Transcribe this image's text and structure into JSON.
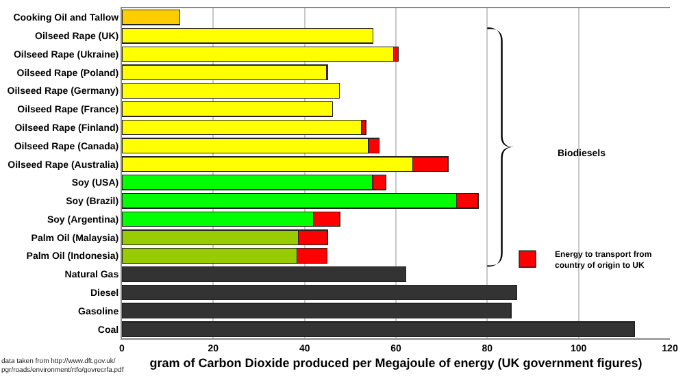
{
  "chart_data": {
    "type": "bar",
    "orientation": "horizontal",
    "stacked": true,
    "categories": [
      "Cooking Oil and Tallow",
      "Oilseed Rape (UK)",
      "Oilseed Rape (Ukraine)",
      "Oilseed Rape (Poland)",
      "Oilseed Rape (Germany)",
      "Oilseed Rape (France)",
      "Oilseed Rape (Finland)",
      "Oilseed Rape (Canada)",
      "Oilseed Rape (Australia)",
      "Soy (USA)",
      "Soy (Brazil)",
      "Soy (Argentina)",
      "Palm Oil (Malaysia)",
      "Palm Oil (Indonesia)",
      "Natural Gas",
      "Diesel",
      "Gasoline",
      "Coal"
    ],
    "series": [
      {
        "colors": [
          "#ffcc00",
          "#ffff00",
          "#ffff00",
          "#ffff00",
          "#ffff00",
          "#ffff00",
          "#ffff00",
          "#ffff00",
          "#ffff00",
          "#00ff00",
          "#00ff00",
          "#00ff00",
          "#99cc00",
          "#99cc00",
          "#333333",
          "#333333",
          "#333333",
          "#333333"
        ],
        "values": [
          12.7,
          55,
          59.5,
          44.8,
          47.6,
          46.1,
          52.5,
          54,
          63.7,
          54.9,
          73.3,
          41.9,
          38.6,
          38.3,
          62.2,
          86.5,
          85.2,
          112.2
        ]
      },
      {
        "name": "Energy to transport from country of origin to UK",
        "color": "#ff0000",
        "values": [
          null,
          null,
          1,
          0.3,
          null,
          null,
          0.9,
          2.3,
          7.7,
          2.9,
          4.7,
          5.8,
          6.4,
          6.6,
          null,
          null,
          null,
          null
        ]
      }
    ],
    "xlabel": "gram of Carbon Dioxide produced per Megajoule of energy (UK government figures)",
    "xlim": [
      0,
      120
    ],
    "xticks": [
      0,
      20,
      40,
      60,
      80,
      100,
      120
    ],
    "grid": "x",
    "legend": "right",
    "annotations": [
      "Biodiesels",
      "data taken from http://www.dft.gov.uk/ pgr/roads/environment/rtfo/govrecrfa.pdf"
    ]
  }
}
